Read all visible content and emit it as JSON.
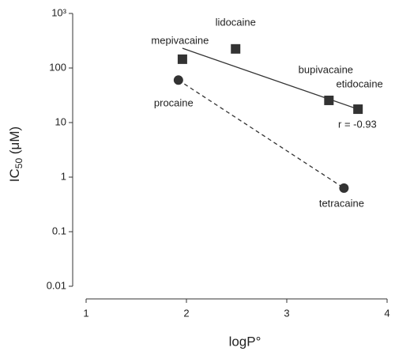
{
  "chart_data": {
    "type": "scatter",
    "ylabel": [
      "IC",
      "50",
      " (μM)"
    ],
    "xlabel": "logP°",
    "ylog": true,
    "xlim": [
      1,
      4
    ],
    "xticks": [
      1,
      2,
      3,
      4
    ],
    "ylim": [
      0.01,
      1000
    ],
    "yticks": [
      0.01,
      0.1,
      1,
      10,
      100,
      {
        "value": 1000,
        "label": "10³"
      }
    ],
    "color": "#333333",
    "points": [
      {
        "label": "mepivacaine",
        "x": 1.96,
        "y": 145,
        "marker": "square"
      },
      {
        "label": "lidocaine",
        "x": 2.49,
        "y": 224,
        "marker": "square"
      },
      {
        "label": "bupivacaine",
        "x": 3.42,
        "y": 25.5,
        "marker": "square"
      },
      {
        "label": "etidocaine",
        "x": 3.71,
        "y": 17.6,
        "marker": "square"
      },
      {
        "label": "procaine",
        "x": 1.92,
        "y": 60,
        "marker": "circle"
      },
      {
        "label": "tetracaine",
        "x": 3.57,
        "y": 0.63,
        "marker": "circle"
      }
    ],
    "lines": [
      {
        "x": [
          1.96,
          3.71
        ],
        "y": [
          230,
          17.6
        ],
        "style": "solid"
      },
      {
        "x": [
          1.92,
          3.57
        ],
        "y": [
          60,
          0.63
        ],
        "style": "dashed"
      }
    ],
    "annotation": "r = -0.93"
  }
}
